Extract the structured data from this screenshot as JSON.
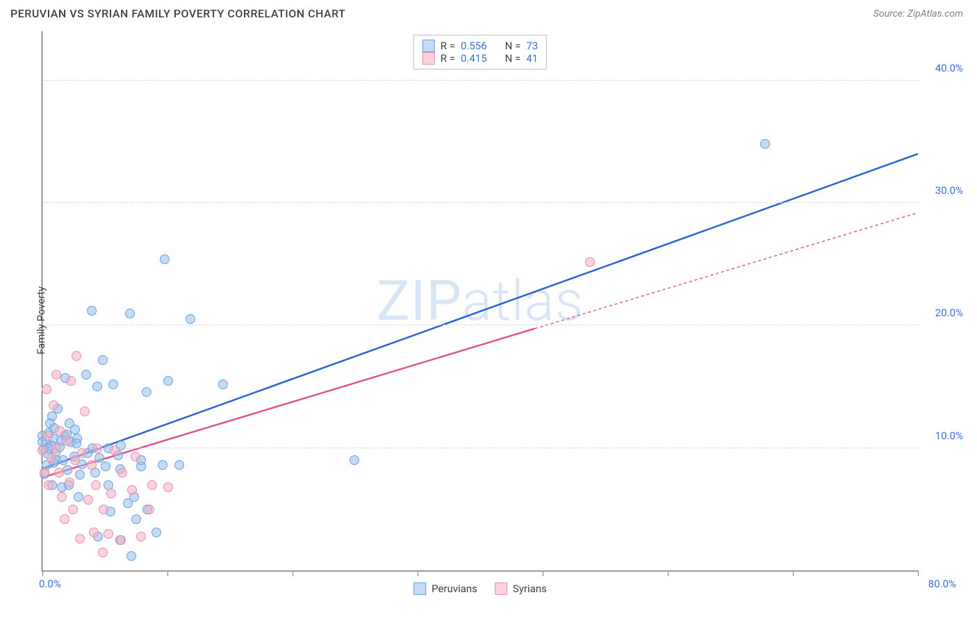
{
  "title": "PERUVIAN VS SYRIAN FAMILY POVERTY CORRELATION CHART",
  "source_label": "Source:",
  "source_name": "ZipAtlas.com",
  "ylabel": "Family Poverty",
  "watermark": "ZIPatlas",
  "chart": {
    "type": "scatter",
    "xlim": [
      0,
      80
    ],
    "ylim": [
      0,
      44
    ],
    "x_min_label": "0.0%",
    "x_max_label": "80.0%",
    "y_tick_values": [
      10,
      20,
      30,
      40
    ],
    "y_tick_labels": [
      "10.0%",
      "20.0%",
      "30.0%",
      "40.0%"
    ],
    "x_tick_positions": [
      0,
      11.43,
      22.86,
      34.29,
      45.71,
      57.14,
      68.57,
      80
    ],
    "grid_color": "#d8d8d8",
    "axis_color": "#404040",
    "tick_label_color": "#3b6fd8",
    "background_color": "#ffffff"
  },
  "series": [
    {
      "key": "peruvians",
      "label": "Peruvians",
      "fill": "rgba(150, 190, 235, 0.55)",
      "stroke": "#6a9fe0",
      "line_color": "#2b63d6",
      "line_dash": "none",
      "R": "0.556",
      "N": "73",
      "trend": {
        "x1": 0,
        "y1": 8.3,
        "x2": 80,
        "y2": 34.0
      },
      "points": [
        [
          1.0,
          10.8
        ],
        [
          0.8,
          10.2
        ],
        [
          2.0,
          11.0
        ],
        [
          1.2,
          9.6
        ],
        [
          2.5,
          12.0
        ],
        [
          1.6,
          10.1
        ],
        [
          0.6,
          11.2
        ],
        [
          3.0,
          11.5
        ],
        [
          1.3,
          9.0
        ],
        [
          2.6,
          10.5
        ],
        [
          0.9,
          12.6
        ],
        [
          3.2,
          10.8
        ],
        [
          2.1,
          15.7
        ],
        [
          4.0,
          16.0
        ],
        [
          5.5,
          17.2
        ],
        [
          6.5,
          15.2
        ],
        [
          5.0,
          15.0
        ],
        [
          4.5,
          21.2
        ],
        [
          8.0,
          21.0
        ],
        [
          11.2,
          25.4
        ],
        [
          13.5,
          20.5
        ],
        [
          11.5,
          15.5
        ],
        [
          16.5,
          15.2
        ],
        [
          9.5,
          14.6
        ],
        [
          5.8,
          8.5
        ],
        [
          6.0,
          7.0
        ],
        [
          7.1,
          8.3
        ],
        [
          9.0,
          8.5
        ],
        [
          11.0,
          8.6
        ],
        [
          7.8,
          5.5
        ],
        [
          6.2,
          4.8
        ],
        [
          8.4,
          6.0
        ],
        [
          9.6,
          5.0
        ],
        [
          5.1,
          2.8
        ],
        [
          7.1,
          2.5
        ],
        [
          8.1,
          1.2
        ],
        [
          10.4,
          3.1
        ],
        [
          3.4,
          7.8
        ],
        [
          1.8,
          6.8
        ],
        [
          2.3,
          8.2
        ],
        [
          1.0,
          8.8
        ],
        [
          0.5,
          9.5
        ],
        [
          0.3,
          10.3
        ],
        [
          0.0,
          11.0
        ],
        [
          0.2,
          7.9
        ],
        [
          2.9,
          9.3
        ],
        [
          4.1,
          9.6
        ],
        [
          0.7,
          12.0
        ],
        [
          1.4,
          13.2
        ],
        [
          0.9,
          7.0
        ],
        [
          0.4,
          8.6
        ],
        [
          0.1,
          9.9
        ],
        [
          1.1,
          11.6
        ],
        [
          3.6,
          8.7
        ],
        [
          5.2,
          9.2
        ],
        [
          4.6,
          10.0
        ],
        [
          2.4,
          7.0
        ],
        [
          3.3,
          6.0
        ],
        [
          6.9,
          9.4
        ],
        [
          1.7,
          10.6
        ],
        [
          9.0,
          9.0
        ],
        [
          12.5,
          8.6
        ],
        [
          7.2,
          10.2
        ],
        [
          4.8,
          8.0
        ],
        [
          0.6,
          10.0
        ],
        [
          1.9,
          9.0
        ],
        [
          3.1,
          10.4
        ],
        [
          0.0,
          10.5
        ],
        [
          8.6,
          4.2
        ],
        [
          6.0,
          10.0
        ],
        [
          28.5,
          9.0
        ],
        [
          66.0,
          34.8
        ],
        [
          2.2,
          11.1
        ]
      ]
    },
    {
      "key": "syrians",
      "label": "Syrians",
      "fill": "rgba(245, 175, 195, 0.55)",
      "stroke": "#e88fae",
      "line_color": "#e15582",
      "line_dash": "4 4",
      "R": "0.415",
      "N": "41",
      "trend": {
        "x1": 0,
        "y1": 7.6,
        "x2": 80,
        "y2": 29.2
      },
      "trend_solid_until_x": 45,
      "points": [
        [
          0.5,
          11.0
        ],
        [
          1.2,
          10.0
        ],
        [
          0.8,
          9.2
        ],
        [
          1.5,
          8.0
        ],
        [
          2.2,
          10.6
        ],
        [
          1.0,
          13.5
        ],
        [
          2.6,
          15.5
        ],
        [
          3.1,
          17.5
        ],
        [
          1.3,
          16.0
        ],
        [
          0.4,
          14.8
        ],
        [
          2.5,
          7.2
        ],
        [
          3.0,
          9.0
        ],
        [
          3.6,
          9.6
        ],
        [
          4.5,
          8.6
        ],
        [
          5.0,
          10.0
        ],
        [
          6.6,
          9.8
        ],
        [
          7.3,
          8.0
        ],
        [
          8.2,
          6.6
        ],
        [
          8.5,
          9.3
        ],
        [
          10.0,
          7.0
        ],
        [
          11.5,
          6.8
        ],
        [
          6.0,
          3.0
        ],
        [
          4.7,
          3.1
        ],
        [
          7.2,
          2.5
        ],
        [
          9.0,
          2.8
        ],
        [
          3.4,
          2.6
        ],
        [
          5.5,
          1.5
        ],
        [
          2.0,
          4.2
        ],
        [
          2.8,
          5.0
        ],
        [
          4.2,
          5.8
        ],
        [
          5.6,
          5.0
        ],
        [
          1.8,
          6.0
        ],
        [
          0.2,
          8.0
        ],
        [
          0.0,
          9.8
        ],
        [
          0.6,
          7.0
        ],
        [
          1.6,
          11.4
        ],
        [
          9.8,
          5.0
        ],
        [
          6.3,
          6.3
        ],
        [
          3.9,
          13.0
        ],
        [
          4.9,
          7.0
        ],
        [
          50.0,
          25.2
        ]
      ]
    }
  ],
  "legend_top": {
    "r_label": "R =",
    "n_label": "N ="
  },
  "legend_bottom": [
    {
      "sw_fill": "rgba(150, 190, 235, 0.7)",
      "sw_stroke": "#6a9fe0",
      "label_key": "series.0.label"
    },
    {
      "sw_fill": "rgba(245, 175, 195, 0.7)",
      "sw_stroke": "#e88fae",
      "label_key": "series.1.label"
    }
  ]
}
